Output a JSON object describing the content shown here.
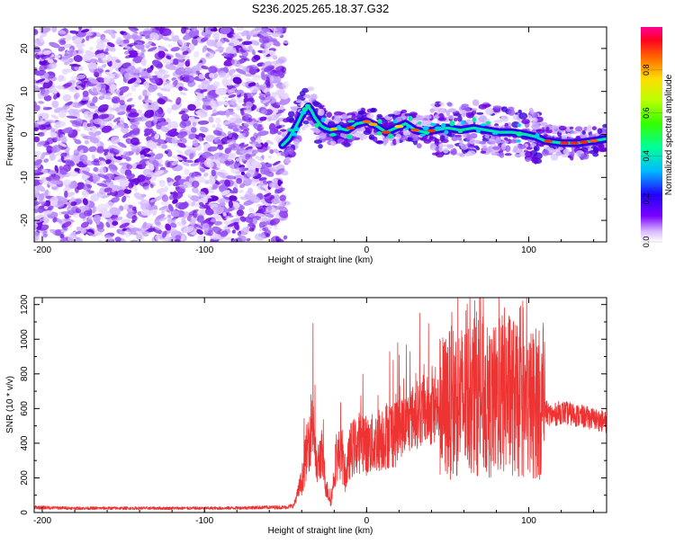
{
  "title": "S236.2025.265.18.37.G32",
  "colors": {
    "trace": "#ee3333",
    "track_low": "#6600dd",
    "track_mid": "#00dd88",
    "track_high": "#ff2200",
    "noise": "#8833ee"
  },
  "chart_data": [
    {
      "type": "heatmap",
      "xlabel": "Height of straight line (km)",
      "ylabel": "Frequency (Hz)",
      "xlim": [
        -205,
        148
      ],
      "ylim": [
        -25,
        25
      ],
      "x_ticks": [
        -200,
        -100,
        0,
        100
      ],
      "y_ticks": [
        -20,
        -10,
        0,
        10,
        20
      ],
      "colorbar": {
        "label": "Normalized spectral amplitude",
        "range": [
          0,
          1
        ],
        "ticks": [
          0.0,
          0.2,
          0.4,
          0.6,
          0.8
        ],
        "colormap": "rainbow"
      },
      "noise_region_x": [
        -205,
        -52
      ],
      "track": {
        "x": [
          -52,
          -48,
          -44,
          -40,
          -36,
          -34,
          -32,
          -30,
          -28,
          -26,
          -22,
          -18,
          -12,
          -6,
          0,
          6,
          12,
          18,
          24,
          30,
          36,
          42,
          50,
          58,
          66,
          74,
          82,
          90,
          98,
          104,
          110,
          120,
          130,
          140,
          148
        ],
        "y": [
          -2.5,
          -1.0,
          1.5,
          4.5,
          6.5,
          5.5,
          4.0,
          3.0,
          2.0,
          1.5,
          1.0,
          1.5,
          1.0,
          2.5,
          3.0,
          2.0,
          0.5,
          1.5,
          2.5,
          1.0,
          0.5,
          1.0,
          1.5,
          1.0,
          1.5,
          1.0,
          0.5,
          0.5,
          0.0,
          -0.5,
          -1.5,
          -2.0,
          -2.0,
          -1.5,
          -1.0
        ]
      }
    },
    {
      "type": "line",
      "xlabel": "Height of straight line (km)",
      "ylabel": "SNR (10 * v/v)",
      "xlim": [
        -205,
        148
      ],
      "ylim": [
        0,
        1240
      ],
      "x_ticks": [
        -200,
        -100,
        0,
        100
      ],
      "y_ticks": [
        0,
        200,
        400,
        600,
        800,
        1000,
        1200
      ],
      "series": [
        {
          "x": [
            -205,
            -180,
            -150,
            -120,
            -90,
            -60,
            -50,
            -45,
            -40,
            -36,
            -33,
            -31,
            -28,
            -25,
            -22,
            -19,
            -16,
            -13,
            -10,
            -6,
            -2,
            0,
            5,
            10,
            15,
            20,
            25,
            30,
            35,
            40,
            45,
            50,
            55,
            60,
            65,
            70,
            75,
            80,
            85,
            90,
            95,
            100,
            105,
            110,
            115,
            120,
            130,
            140,
            148
          ],
          "values": [
            30,
            25,
            25,
            25,
            25,
            30,
            30,
            40,
            180,
            400,
            560,
            250,
            350,
            150,
            60,
            300,
            350,
            200,
            360,
            390,
            430,
            380,
            400,
            440,
            460,
            480,
            520,
            560,
            590,
            580,
            600,
            620,
            650,
            640,
            680,
            700,
            620,
            640,
            700,
            680,
            600,
            620,
            640,
            580,
            560,
            580,
            560,
            540,
            520
          ]
        }
      ]
    }
  ]
}
